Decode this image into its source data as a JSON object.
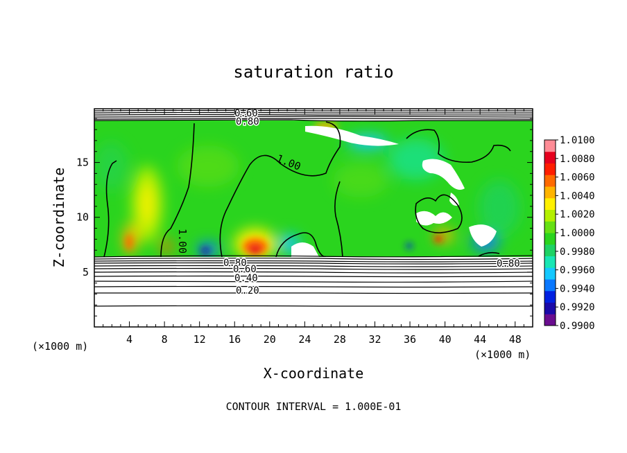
{
  "chart_data": {
    "type": "heatmap",
    "title": "saturation ratio",
    "xlabel": "X-coordinate",
    "ylabel": "Z-coordinate",
    "x_unit": "(×1000 m)",
    "y_unit": "(×1000 m)",
    "xlim": [
      0,
      50
    ],
    "ylim": [
      0,
      19.9
    ],
    "x_ticks": [
      4,
      8,
      12,
      16,
      20,
      24,
      28,
      32,
      36,
      40,
      44,
      48
    ],
    "y_ticks": [
      5,
      10,
      15
    ],
    "footer": "CONTOUR INTERVAL = 1.000E-01",
    "colorbar": {
      "min": 0.99,
      "max": 1.01,
      "labels": [
        "1.0100",
        "1.0080",
        "1.0060",
        "1.0040",
        "1.0020",
        "1.0000",
        "0.9980",
        "0.9960",
        "0.9940",
        "0.9920",
        "0.9900"
      ],
      "colors": [
        "#6a0d8f",
        "#1a0aa8",
        "#0020e0",
        "#0a78ff",
        "#14c8ff",
        "#18e6b4",
        "#1ed264",
        "#2ad41e",
        "#66e014",
        "#b4f000",
        "#fff000",
        "#ffb400",
        "#ff6a00",
        "#ff1e00",
        "#e6001e",
        "#ff8c96"
      ]
    },
    "contour_labels": [
      {
        "text": "0.60",
        "x": 17.3,
        "y": 19.3
      },
      {
        "text": "0.80",
        "x": 17.5,
        "y": 18.7
      },
      {
        "text": "1.00",
        "x": 22.0,
        "y": 14.6
      },
      {
        "text": "1.00",
        "x": 9.3,
        "y": 8.5
      },
      {
        "text": "0.80",
        "x": 16.5,
        "y": 5.8
      },
      {
        "text": "0.60",
        "x": 17.0,
        "y": 5.4
      },
      {
        "text": "0.40",
        "x": 17.2,
        "y": 4.6
      },
      {
        "text": "0.20",
        "x": 17.6,
        "y": 3.4
      },
      {
        "text": "0.80",
        "x": 46.0,
        "y": 5.9
      }
    ],
    "regions": {
      "saturated_layer_z": [
        6.4,
        18.7
      ],
      "maxima": [
        {
          "x": 6.0,
          "z": 11.0,
          "value": 1.003
        },
        {
          "x": 4.2,
          "z": 7.8,
          "value": 1.006
        },
        {
          "x": 18.7,
          "z": 7.2,
          "value": 1.009
        },
        {
          "x": 8.6,
          "z": 7.0,
          "value": 1.007
        },
        {
          "x": 39.0,
          "z": 8.2,
          "value": 1.006
        },
        {
          "x": 27.0,
          "z": 18.0,
          "value": 1.006
        }
      ],
      "minima": [
        {
          "x": 13.0,
          "z": 6.8,
          "value": 0.994
        },
        {
          "x": 35.5,
          "z": 7.8,
          "value": 0.994
        },
        {
          "x": 43.5,
          "z": 7.6,
          "value": 0.994
        }
      ]
    }
  }
}
